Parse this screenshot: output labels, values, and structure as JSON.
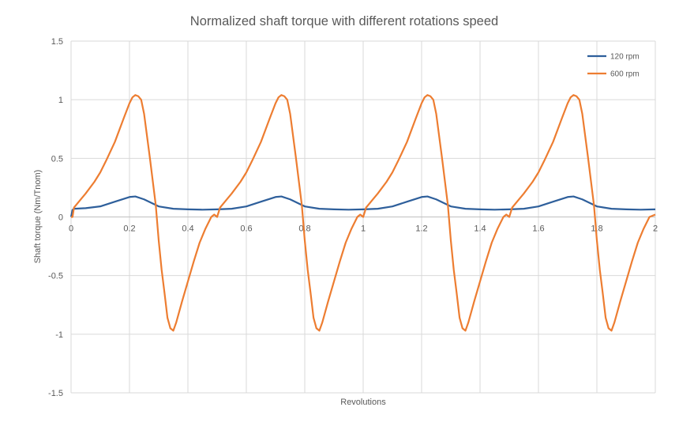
{
  "chart_data": {
    "type": "line",
    "title": "Normalized shaft torque with different rotations speed",
    "xlabel": "Revolutions",
    "ylabel": "Shaft torque (Nm/Tnom)",
    "xlim": [
      0,
      2
    ],
    "ylim": [
      -1.5,
      1.5
    ],
    "x_ticks": [
      0,
      0.2,
      0.4,
      0.6,
      0.8,
      1,
      1.2,
      1.4,
      1.6,
      1.8,
      2
    ],
    "x_tick_labels": [
      "0",
      "0.2",
      "0.4",
      "0.6",
      "0.8",
      "1",
      "1.2",
      "1.4",
      "1.6",
      "1.8",
      "2"
    ],
    "y_ticks": [
      -1.5,
      -1,
      -0.5,
      0,
      0.5,
      1,
      1.5
    ],
    "y_tick_labels": [
      "-1.5",
      "-1",
      "-0.5",
      "0",
      "0.5",
      "1",
      "1.5"
    ],
    "grid": true,
    "legend_position": "top-right",
    "series": [
      {
        "name": "120 rpm",
        "color": "#2e5f9b",
        "x": [
          0,
          0.005,
          0.01,
          0.05,
          0.1,
          0.15,
          0.2,
          0.22,
          0.25,
          0.3,
          0.35,
          0.4,
          0.45,
          0.5,
          0.55,
          0.6,
          0.65,
          0.7,
          0.72,
          0.75,
          0.8,
          0.85,
          0.9,
          0.95,
          1.0,
          1.05,
          1.1,
          1.15,
          1.2,
          1.22,
          1.25,
          1.3,
          1.35,
          1.4,
          1.45,
          1.5,
          1.55,
          1.6,
          1.65,
          1.7,
          1.72,
          1.75,
          1.8,
          1.85,
          1.9,
          1.95,
          2.0
        ],
        "y": [
          0,
          0.06,
          0.07,
          0.075,
          0.09,
          0.13,
          0.17,
          0.175,
          0.15,
          0.09,
          0.07,
          0.065,
          0.062,
          0.065,
          0.07,
          0.09,
          0.13,
          0.17,
          0.175,
          0.15,
          0.09,
          0.07,
          0.065,
          0.062,
          0.065,
          0.07,
          0.09,
          0.13,
          0.17,
          0.175,
          0.15,
          0.09,
          0.07,
          0.065,
          0.062,
          0.065,
          0.07,
          0.09,
          0.13,
          0.17,
          0.175,
          0.15,
          0.09,
          0.07,
          0.065,
          0.062,
          0.065
        ]
      },
      {
        "name": "600 rpm",
        "color": "#ed7d31",
        "x": [
          0,
          0.005,
          0.01,
          0.03,
          0.05,
          0.08,
          0.1,
          0.12,
          0.15,
          0.18,
          0.2,
          0.21,
          0.22,
          0.23,
          0.24,
          0.25,
          0.27,
          0.29,
          0.3,
          0.31,
          0.32,
          0.33,
          0.34,
          0.35,
          0.36,
          0.38,
          0.4,
          0.42,
          0.44,
          0.46,
          0.48,
          0.49,
          0.5,
          0.51,
          0.53,
          0.55,
          0.58,
          0.6,
          0.62,
          0.65,
          0.68,
          0.7,
          0.71,
          0.72,
          0.73,
          0.74,
          0.75,
          0.77,
          0.79,
          0.8,
          0.81,
          0.82,
          0.83,
          0.84,
          0.85,
          0.86,
          0.88,
          0.9,
          0.92,
          0.94,
          0.96,
          0.98,
          0.99,
          1.0,
          1.01,
          1.03,
          1.05,
          1.08,
          1.1,
          1.12,
          1.15,
          1.18,
          1.2,
          1.21,
          1.22,
          1.23,
          1.24,
          1.25,
          1.27,
          1.29,
          1.3,
          1.31,
          1.32,
          1.33,
          1.34,
          1.35,
          1.36,
          1.38,
          1.4,
          1.42,
          1.44,
          1.46,
          1.48,
          1.49,
          1.5,
          1.51,
          1.53,
          1.55,
          1.58,
          1.6,
          1.62,
          1.65,
          1.68,
          1.7,
          1.71,
          1.72,
          1.73,
          1.74,
          1.75,
          1.77,
          1.79,
          1.8,
          1.81,
          1.82,
          1.83,
          1.84,
          1.85,
          1.86,
          1.88,
          1.9,
          1.92,
          1.94,
          1.96,
          1.98,
          2.0
        ],
        "y": [
          0,
          0,
          0.08,
          0.14,
          0.2,
          0.3,
          0.38,
          0.48,
          0.64,
          0.84,
          0.97,
          1.02,
          1.04,
          1.03,
          1.0,
          0.88,
          0.5,
          0.1,
          -0.2,
          -0.45,
          -0.65,
          -0.86,
          -0.95,
          -0.97,
          -0.9,
          -0.72,
          -0.55,
          -0.38,
          -0.22,
          -0.1,
          0.0,
          0.02,
          0.0,
          0.08,
          0.14,
          0.2,
          0.3,
          0.38,
          0.48,
          0.64,
          0.84,
          0.97,
          1.02,
          1.04,
          1.03,
          1.0,
          0.88,
          0.5,
          0.1,
          -0.2,
          -0.45,
          -0.65,
          -0.86,
          -0.95,
          -0.97,
          -0.9,
          -0.72,
          -0.55,
          -0.38,
          -0.22,
          -0.1,
          0.0,
          0.02,
          0.0,
          0.08,
          0.14,
          0.2,
          0.3,
          0.38,
          0.48,
          0.64,
          0.84,
          0.97,
          1.02,
          1.04,
          1.03,
          1.0,
          0.88,
          0.5,
          0.1,
          -0.2,
          -0.45,
          -0.65,
          -0.86,
          -0.95,
          -0.97,
          -0.9,
          -0.72,
          -0.55,
          -0.38,
          -0.22,
          -0.1,
          0.0,
          0.02,
          0.0,
          0.08,
          0.14,
          0.2,
          0.3,
          0.38,
          0.48,
          0.64,
          0.84,
          0.97,
          1.02,
          1.04,
          1.03,
          1.0,
          0.88,
          0.5,
          0.1,
          -0.2,
          -0.45,
          -0.65,
          -0.86,
          -0.95,
          -0.97,
          -0.9,
          -0.72,
          -0.55,
          -0.38,
          -0.22,
          -0.1,
          0.0,
          0.02
        ]
      }
    ]
  }
}
